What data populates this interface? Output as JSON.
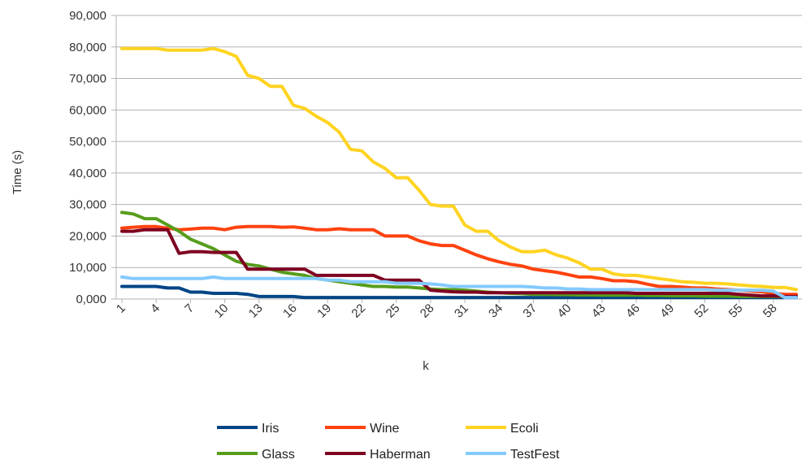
{
  "chart_data": {
    "type": "line",
    "xlabel": "k",
    "ylabel": "Time (s)",
    "ylim": [
      0,
      90000
    ],
    "y_ticks": [
      0,
      10000,
      20000,
      30000,
      40000,
      50000,
      60000,
      70000,
      80000,
      90000
    ],
    "y_tick_labels": [
      "0,000",
      "10,000",
      "20,000",
      "30,000",
      "40,000",
      "50,000",
      "60,000",
      "70,000",
      "80,000",
      "90,000"
    ],
    "x_tick_labels": [
      "1",
      "4",
      "7",
      "10",
      "13",
      "16",
      "19",
      "22",
      "25",
      "28",
      "31",
      "34",
      "37",
      "40",
      "43",
      "46",
      "49",
      "52",
      "55",
      "58"
    ],
    "x": [
      1,
      2,
      3,
      4,
      5,
      6,
      7,
      8,
      9,
      10,
      11,
      12,
      13,
      14,
      15,
      16,
      17,
      18,
      19,
      20,
      21,
      22,
      23,
      24,
      25,
      26,
      27,
      28,
      29,
      30,
      31,
      32,
      33,
      34,
      35,
      36,
      37,
      38,
      39,
      40,
      41,
      42,
      43,
      44,
      45,
      46,
      47,
      48,
      49,
      50,
      51,
      52,
      53,
      54,
      55,
      56,
      57,
      58,
      59,
      60
    ],
    "grid": "horizontal",
    "legend_position": "bottom",
    "series": [
      {
        "name": "Iris",
        "color": "#004586",
        "values": [
          4000,
          4000,
          4000,
          4000,
          3500,
          3500,
          2200,
          2200,
          1800,
          1800,
          1800,
          1500,
          800,
          800,
          800,
          800,
          500,
          500,
          500,
          500,
          500,
          500,
          500,
          500,
          500,
          500,
          500,
          500,
          500,
          500,
          500,
          500,
          500,
          500,
          500,
          500,
          500,
          500,
          500,
          500,
          500,
          500,
          500,
          500,
          500,
          500,
          500,
          500,
          500,
          500,
          500,
          500,
          500,
          500,
          500,
          500,
          500,
          500,
          500,
          500
        ]
      },
      {
        "name": "Wine",
        "color": "#ff420e",
        "values": [
          22500,
          22800,
          23000,
          23000,
          22500,
          22000,
          22200,
          22500,
          22500,
          22000,
          22800,
          23000,
          23000,
          23000,
          22800,
          22900,
          22500,
          22000,
          22000,
          22300,
          22000,
          22000,
          22000,
          20000,
          20000,
          20000,
          18500,
          17500,
          17000,
          17000,
          15500,
          14000,
          12800,
          11800,
          11000,
          10500,
          9500,
          9000,
          8500,
          7800,
          7000,
          7000,
          6500,
          5800,
          5800,
          5500,
          4700,
          4000,
          4000,
          3800,
          3500,
          3500,
          3200,
          3000,
          2800,
          2500,
          2300,
          1800,
          1500,
          1500
        ]
      },
      {
        "name": "Ecoli",
        "color": "#ffd320",
        "values": [
          79500,
          79500,
          79500,
          79500,
          79000,
          79000,
          79000,
          79000,
          79500,
          78500,
          77000,
          71000,
          70000,
          67500,
          67500,
          61500,
          60500,
          58000,
          56000,
          53000,
          47500,
          47000,
          43500,
          41500,
          38500,
          38500,
          34500,
          30000,
          29500,
          29500,
          23500,
          21500,
          21500,
          18500,
          16500,
          15000,
          15000,
          15500,
          14000,
          13000,
          11500,
          9500,
          9500,
          8000,
          7500,
          7500,
          7000,
          6500,
          6000,
          5500,
          5300,
          5000,
          5000,
          4800,
          4500,
          4200,
          4000,
          3700,
          3700,
          3000
        ]
      },
      {
        "name": "Glass",
        "color": "#579d1c",
        "values": [
          27500,
          27000,
          25500,
          25500,
          23500,
          21500,
          19000,
          17500,
          16000,
          14000,
          12000,
          11000,
          10500,
          9500,
          8500,
          8000,
          7500,
          6500,
          6000,
          5500,
          5000,
          4500,
          4000,
          4000,
          3800,
          3800,
          3500,
          3200,
          3000,
          3000,
          2800,
          2500,
          2200,
          2000,
          1800,
          1700,
          1500,
          1500,
          1400,
          1400,
          1300,
          1300,
          1200,
          1200,
          1200,
          1200,
          1100,
          1100,
          1000,
          1000,
          1000,
          900,
          900,
          900,
          800,
          800,
          800,
          800,
          700,
          700
        ]
      },
      {
        "name": "Haberman",
        "color": "#7e0021",
        "values": [
          21500,
          21500,
          22000,
          22000,
          22000,
          14500,
          15000,
          15000,
          14800,
          14800,
          14800,
          9500,
          9500,
          9500,
          9500,
          9500,
          9500,
          7500,
          7500,
          7500,
          7500,
          7500,
          7500,
          6000,
          6000,
          6000,
          6000,
          2800,
          2500,
          2300,
          2200,
          2200,
          2000,
          2000,
          2000,
          2000,
          2000,
          2000,
          2000,
          2000,
          2000,
          2000,
          2000,
          2000,
          2000,
          1800,
          1800,
          1800,
          1800,
          1800,
          1800,
          1800,
          1800,
          1800,
          1500,
          1200,
          1000,
          1000,
          800,
          800
        ]
      },
      {
        "name": "TestFest",
        "color": "#83caff",
        "values": [
          7000,
          6500,
          6500,
          6500,
          6500,
          6500,
          6500,
          6500,
          7000,
          6500,
          6500,
          6500,
          6500,
          6500,
          6500,
          6500,
          6500,
          6500,
          6000,
          6000,
          5500,
          5500,
          5500,
          5500,
          5000,
          5000,
          5000,
          4800,
          4500,
          4000,
          4000,
          4000,
          4000,
          4000,
          4000,
          4000,
          3800,
          3500,
          3500,
          3200,
          3200,
          3000,
          3000,
          3000,
          3000,
          3000,
          3000,
          3000,
          3000,
          3000,
          3000,
          3000,
          2800,
          2800,
          2800,
          2800,
          2800,
          2500,
          500,
          500
        ]
      }
    ]
  }
}
